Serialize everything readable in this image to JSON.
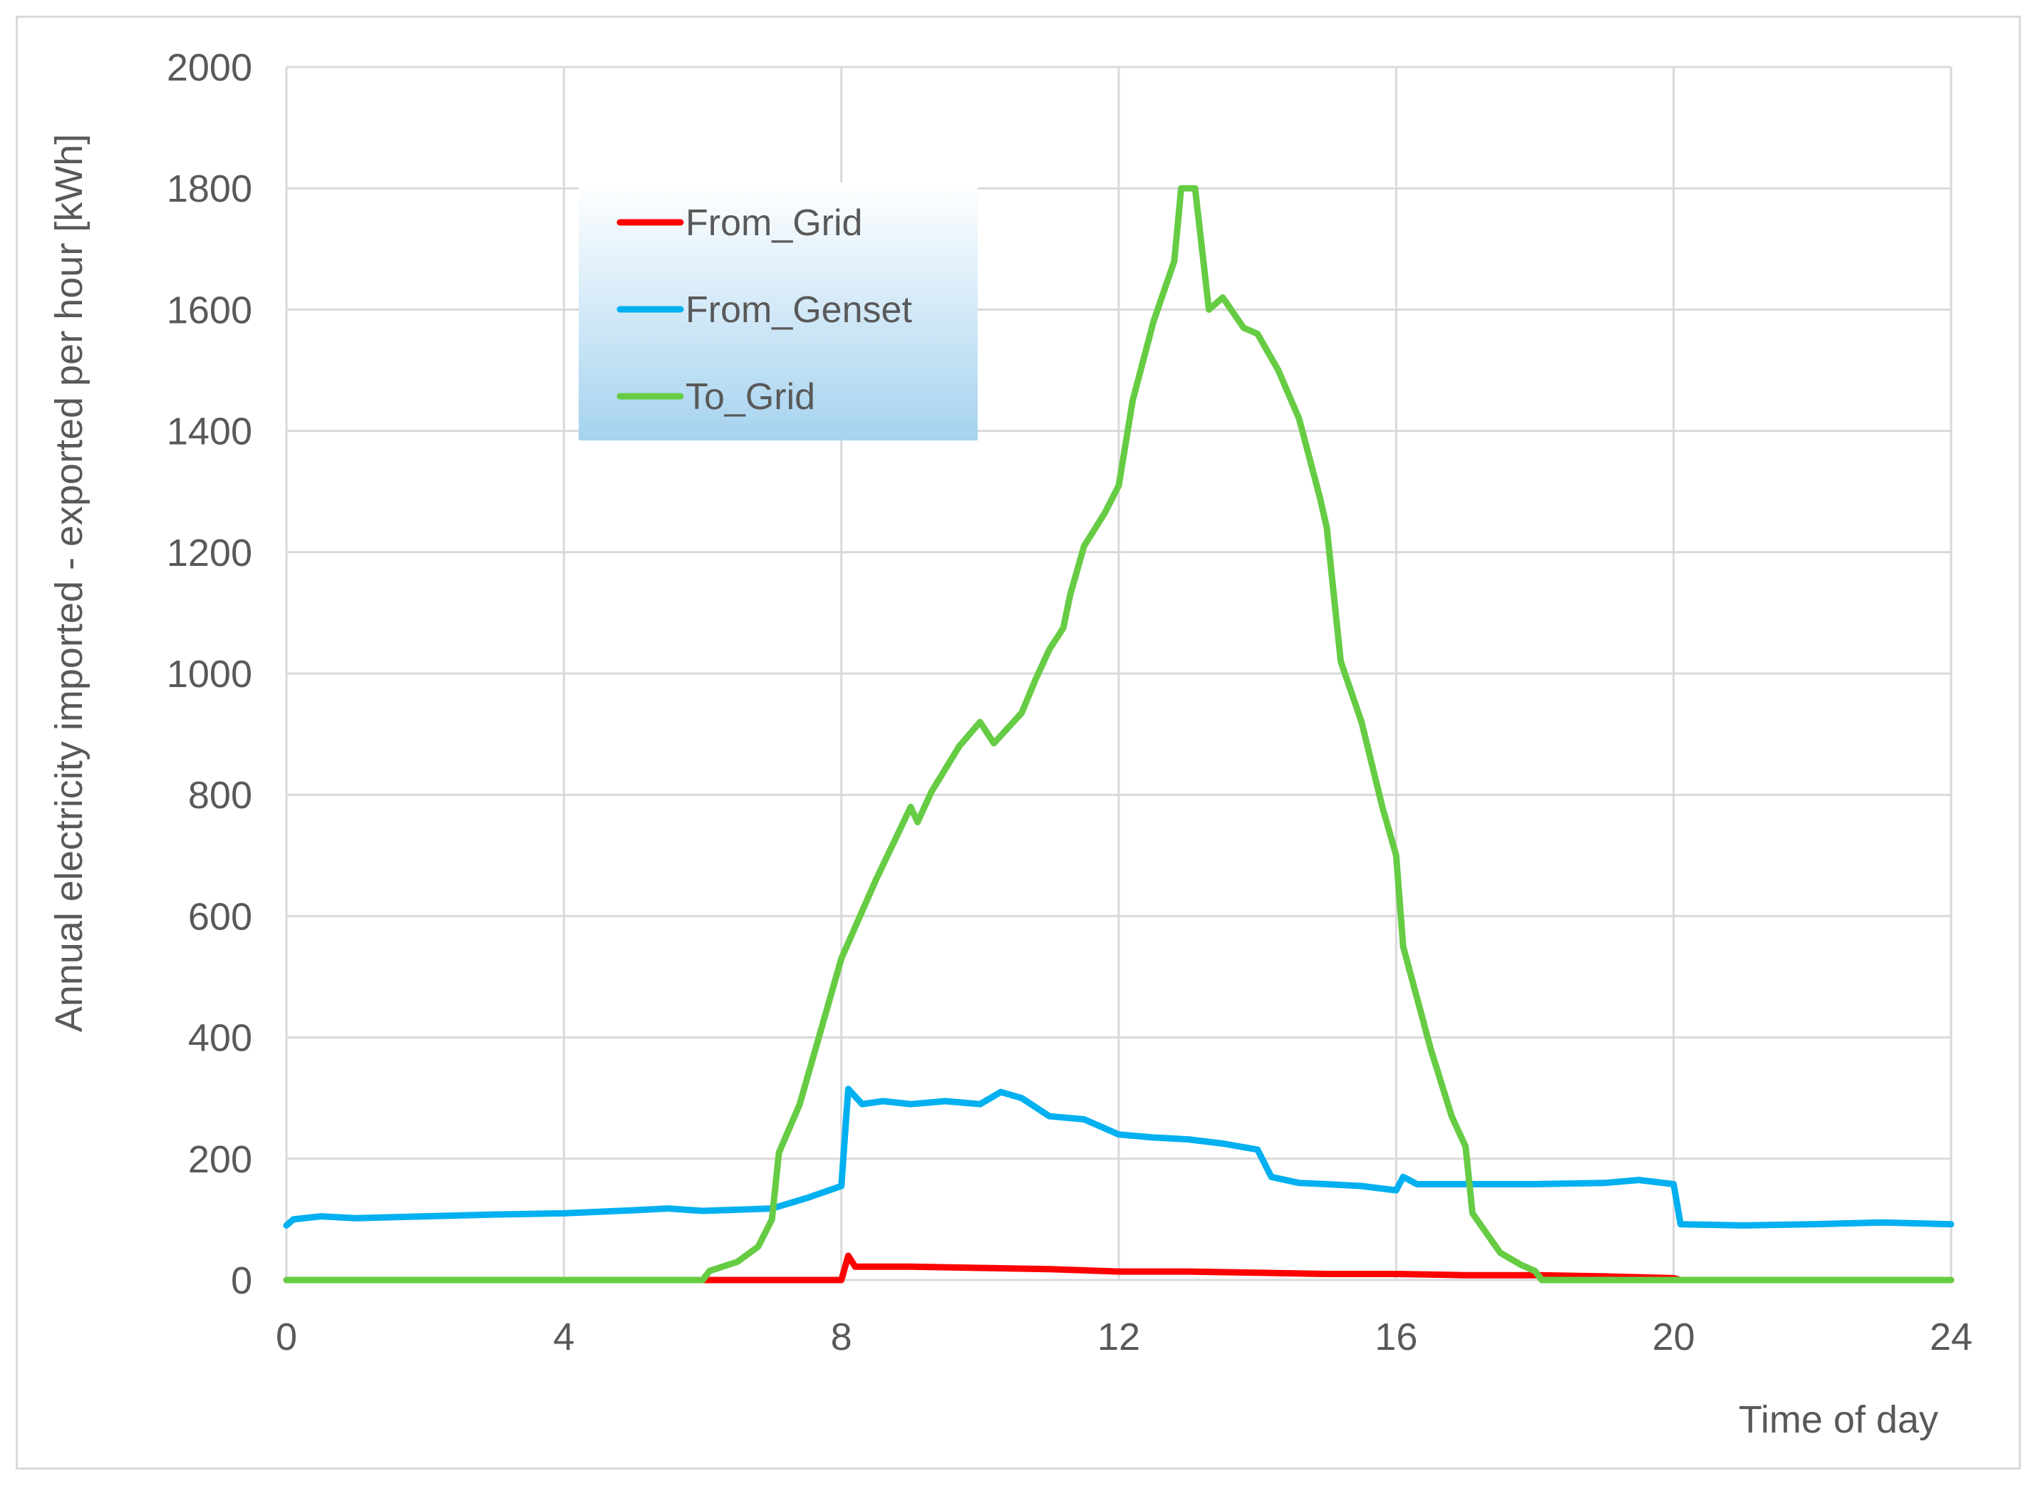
{
  "chart_data": {
    "type": "line",
    "title": "",
    "xlabel": "Time of day",
    "ylabel": "Annual electricity imported - exported per hour  [kWh]",
    "xlim": [
      0,
      24
    ],
    "ylim": [
      0,
      2000
    ],
    "x_ticks": [
      0,
      4,
      8,
      12,
      16,
      20,
      24
    ],
    "y_ticks": [
      0,
      200,
      400,
      600,
      800,
      1000,
      1200,
      1400,
      1600,
      1800,
      2000
    ],
    "grid": true,
    "legend_position": "top-left",
    "series": [
      {
        "name": "From_Grid",
        "color": "#ff0000",
        "points": [
          [
            0,
            0
          ],
          [
            6,
            0
          ],
          [
            8,
            0
          ],
          [
            8.1,
            40
          ],
          [
            8.2,
            22
          ],
          [
            9,
            22
          ],
          [
            10,
            20
          ],
          [
            11,
            18
          ],
          [
            12,
            14
          ],
          [
            13,
            14
          ],
          [
            14,
            12
          ],
          [
            15,
            10
          ],
          [
            16,
            10
          ],
          [
            17,
            8
          ],
          [
            18,
            8
          ],
          [
            19,
            6
          ],
          [
            20,
            3
          ],
          [
            20.1,
            0
          ],
          [
            24,
            0
          ]
        ]
      },
      {
        "name": "From_Genset",
        "color": "#00b0f0",
        "points": [
          [
            0,
            90
          ],
          [
            0.1,
            100
          ],
          [
            0.5,
            105
          ],
          [
            1,
            102
          ],
          [
            2,
            105
          ],
          [
            3,
            108
          ],
          [
            4,
            110
          ],
          [
            5,
            115
          ],
          [
            5.5,
            118
          ],
          [
            6,
            114
          ],
          [
            7,
            118
          ],
          [
            7.5,
            135
          ],
          [
            8,
            155
          ],
          [
            8.1,
            315
          ],
          [
            8.3,
            290
          ],
          [
            8.6,
            295
          ],
          [
            9,
            290
          ],
          [
            9.5,
            295
          ],
          [
            10,
            290
          ],
          [
            10.3,
            310
          ],
          [
            10.6,
            300
          ],
          [
            11,
            270
          ],
          [
            11.5,
            265
          ],
          [
            12,
            240
          ],
          [
            12.5,
            235
          ],
          [
            13,
            232
          ],
          [
            13.5,
            225
          ],
          [
            14,
            215
          ],
          [
            14.2,
            170
          ],
          [
            14.6,
            160
          ],
          [
            15,
            158
          ],
          [
            15.5,
            155
          ],
          [
            16,
            148
          ],
          [
            16.1,
            170
          ],
          [
            16.3,
            158
          ],
          [
            17,
            158
          ],
          [
            18,
            158
          ],
          [
            19,
            160
          ],
          [
            19.5,
            165
          ],
          [
            20,
            158
          ],
          [
            20.1,
            92
          ],
          [
            21,
            90
          ],
          [
            22,
            92
          ],
          [
            23,
            95
          ],
          [
            24,
            92
          ]
        ]
      },
      {
        "name": "To_Grid",
        "color": "#66cc44",
        "points": [
          [
            0,
            0
          ],
          [
            6,
            0
          ],
          [
            6.1,
            15
          ],
          [
            6.5,
            30
          ],
          [
            6.8,
            55
          ],
          [
            7,
            100
          ],
          [
            7.1,
            210
          ],
          [
            7.4,
            290
          ],
          [
            7.7,
            410
          ],
          [
            8,
            530
          ],
          [
            8.5,
            660
          ],
          [
            9,
            780
          ],
          [
            9.1,
            755
          ],
          [
            9.3,
            805
          ],
          [
            9.7,
            880
          ],
          [
            10,
            920
          ],
          [
            10.2,
            885
          ],
          [
            10.6,
            935
          ],
          [
            10.8,
            990
          ],
          [
            11,
            1040
          ],
          [
            11.2,
            1075
          ],
          [
            11.3,
            1130
          ],
          [
            11.5,
            1210
          ],
          [
            11.8,
            1265
          ],
          [
            12,
            1310
          ],
          [
            12.2,
            1450
          ],
          [
            12.5,
            1580
          ],
          [
            12.8,
            1680
          ],
          [
            12.9,
            1800
          ],
          [
            13.1,
            1800
          ],
          [
            13.3,
            1600
          ],
          [
            13.5,
            1620
          ],
          [
            13.8,
            1570
          ],
          [
            14,
            1560
          ],
          [
            14.3,
            1500
          ],
          [
            14.6,
            1420
          ],
          [
            14.9,
            1290
          ],
          [
            15,
            1240
          ],
          [
            15.2,
            1020
          ],
          [
            15.5,
            920
          ],
          [
            15.8,
            780
          ],
          [
            16,
            700
          ],
          [
            16.1,
            550
          ],
          [
            16.5,
            380
          ],
          [
            16.8,
            270
          ],
          [
            17,
            220
          ],
          [
            17.1,
            110
          ],
          [
            17.5,
            45
          ],
          [
            17.8,
            25
          ],
          [
            18,
            15
          ],
          [
            18.1,
            0
          ],
          [
            24,
            0
          ]
        ]
      }
    ]
  }
}
